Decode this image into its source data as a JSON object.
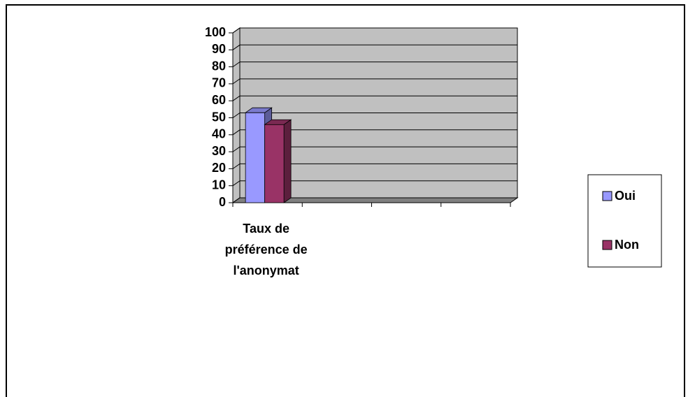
{
  "chart_data": {
    "type": "bar3d",
    "categories": [
      "Taux de préférence de l'anonymat",
      null,
      null,
      null
    ],
    "series": [
      {
        "name": "Oui",
        "color": "#9999ff",
        "values": [
          53,
          null,
          null,
          null
        ]
      },
      {
        "name": "Non",
        "color": "#993366",
        "values": [
          46,
          null,
          null,
          null
        ]
      }
    ],
    "ylim": [
      0,
      100
    ],
    "yticks": [
      0,
      10,
      20,
      30,
      40,
      50,
      60,
      70,
      80,
      90,
      100
    ],
    "grid": true,
    "legend": "right"
  }
}
